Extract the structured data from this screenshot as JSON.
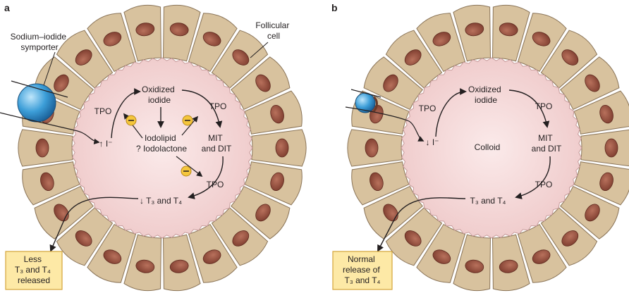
{
  "panel_a": {
    "letter": "a",
    "symporter_label": [
      "Sodium–iodide",
      "symporter"
    ],
    "follicular_label": [
      "Follicular",
      "cell"
    ],
    "tpo_1": "TPO",
    "tpo_2": "TPO",
    "tpo_3": "TPO",
    "oxidized": [
      "Oxidized",
      "iodide"
    ],
    "iodolipid": [
      "Iodolipid",
      "? Iodolactone"
    ],
    "mit": [
      "MIT",
      "and DIT"
    ],
    "iodide": "↑ I⁻",
    "t3t4": "↓ T₃ and T₄",
    "inhibit_symbol": "⊖",
    "box": [
      "Less",
      "T₃ and T₄",
      "released"
    ],
    "colors": {
      "box_fill": "#fde9a6",
      "box_stroke": "#d4a43a"
    }
  },
  "panel_b": {
    "letter": "b",
    "tpo_1": "TPO",
    "tpo_2": "TPO",
    "tpo_3": "TPO",
    "oxidized": [
      "Oxidized",
      "iodide"
    ],
    "mit": [
      "MIT",
      "and DIT"
    ],
    "colloid": "Colloid",
    "iodide": "↓ I⁻",
    "t3t4": "T₃ and T₄",
    "box": [
      "Normal",
      "release of",
      "T₃ and T₄"
    ]
  },
  "colors": {
    "cell_fill": "#d8c29e",
    "cell_stroke": "#8a7458",
    "nucleus_fill": "#8e4a3a",
    "colloid_fill": "#f4d8d8",
    "symporter_fill": "#3a9bd5"
  }
}
